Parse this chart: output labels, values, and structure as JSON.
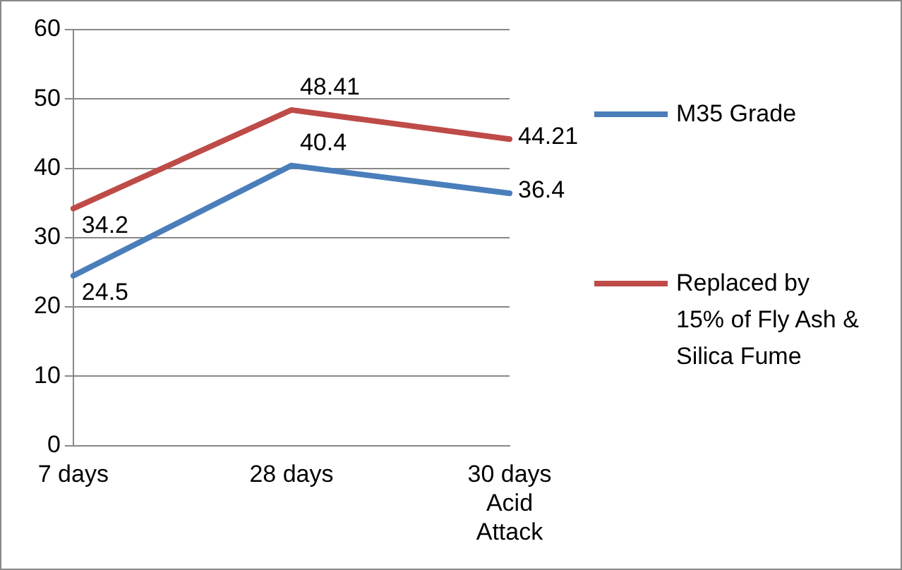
{
  "chart_data": {
    "type": "line",
    "categories": [
      "7 days",
      "28 days",
      "30 days Acid Attack"
    ],
    "series": [
      {
        "name": "M35 Grade",
        "color": "#4a7ebb",
        "values": [
          24.5,
          40.4,
          36.4
        ]
      },
      {
        "name": "Replaced by 15% of Fly Ash & Silica Fume",
        "color": "#be4b48",
        "values": [
          34.2,
          48.41,
          44.21
        ]
      }
    ],
    "ylim": [
      0,
      60
    ],
    "yticks": [
      0,
      10,
      20,
      30,
      40,
      50,
      60
    ],
    "grid": "y",
    "legend": "right",
    "data_labels": true,
    "marker": "none"
  }
}
